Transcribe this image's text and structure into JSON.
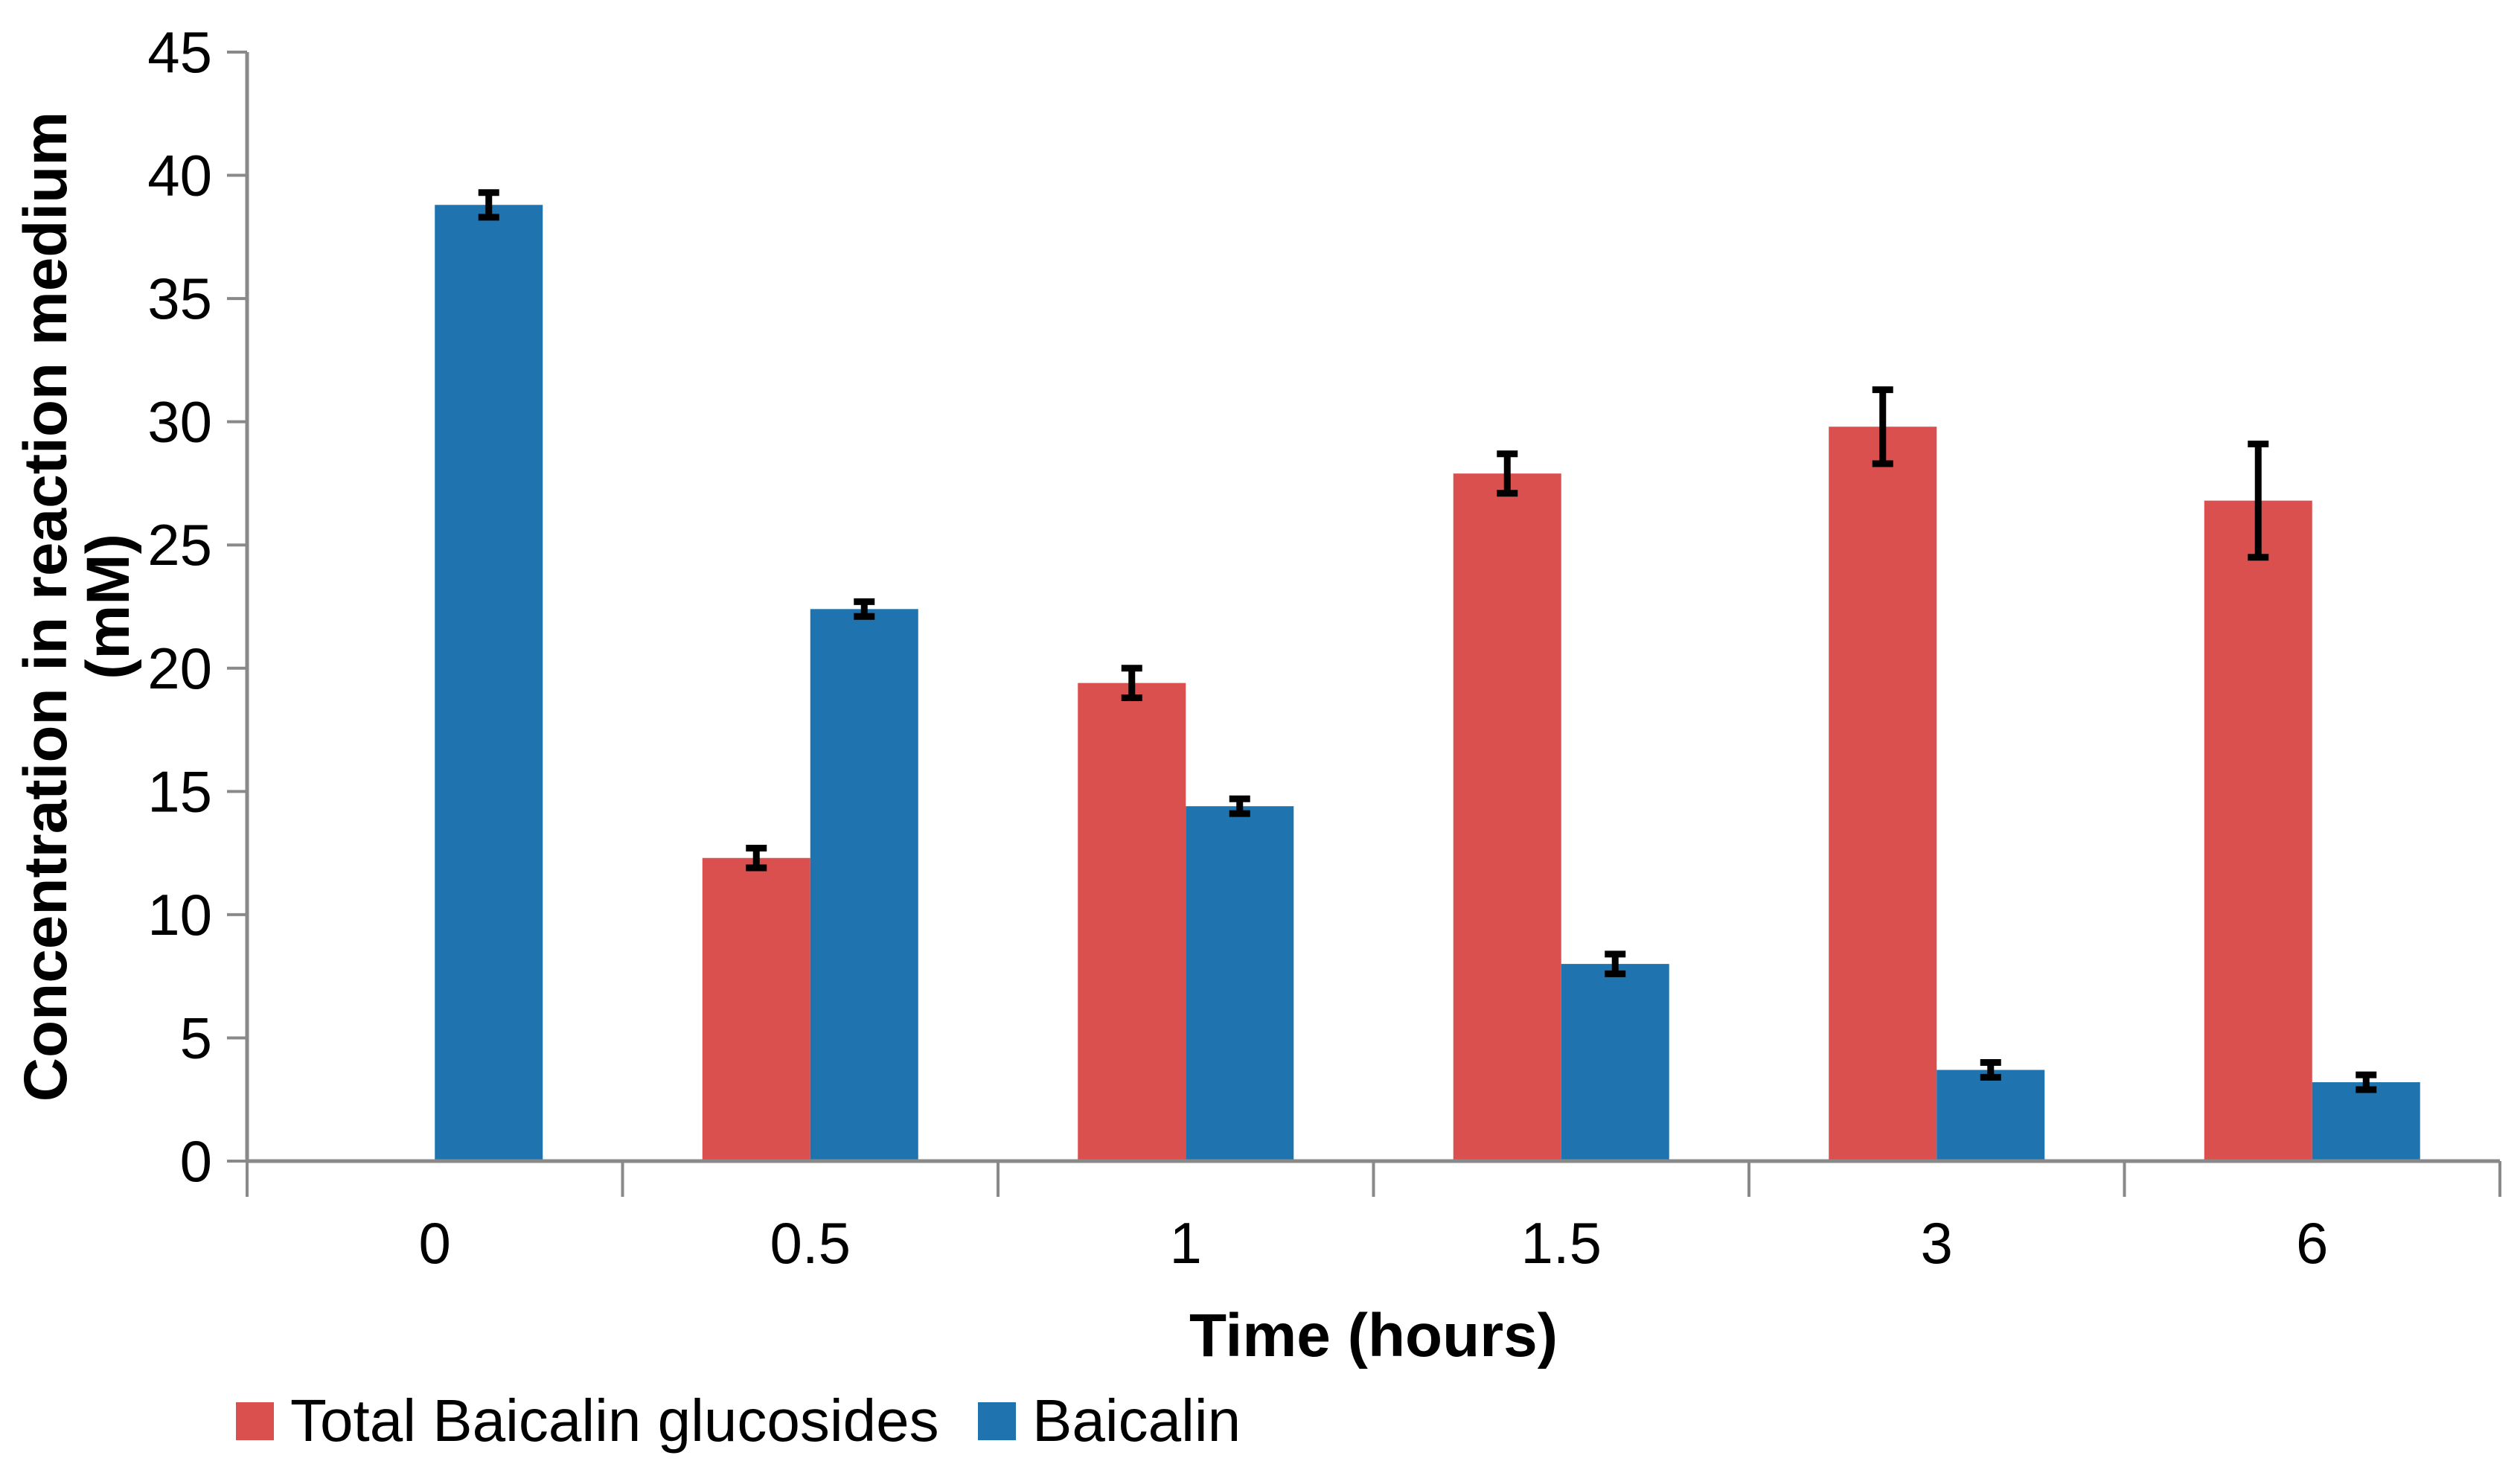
{
  "chart_data": {
    "type": "bar",
    "categories": [
      "0",
      "0.5",
      "1",
      "1.5",
      "3",
      "6"
    ],
    "series": [
      {
        "name": "Total Baicalin glucosides",
        "color": "#d9504e",
        "values": [
          0,
          12.3,
          19.4,
          27.9,
          29.8,
          26.8
        ],
        "errors": [
          0,
          0.4,
          0.6,
          0.8,
          1.5,
          2.3
        ]
      },
      {
        "name": "Baicalin",
        "color": "#1f73ae",
        "values": [
          38.8,
          22.4,
          14.4,
          8.0,
          3.7,
          3.2
        ],
        "errors": [
          0.5,
          0.3,
          0.3,
          0.4,
          0.3,
          0.3
        ]
      }
    ],
    "title": "",
    "xlabel": "Time (hours)",
    "ylabel": "Concentration in reaction medium (mM)",
    "ylim": [
      0,
      45
    ],
    "yticks": [
      0,
      5,
      10,
      15,
      20,
      25,
      30,
      35,
      40,
      45
    ],
    "grid": false,
    "legend_position": "bottom-left",
    "error_bar_color": "#000000",
    "axis_color": "#898989",
    "tick_label_color": "#000000"
  }
}
